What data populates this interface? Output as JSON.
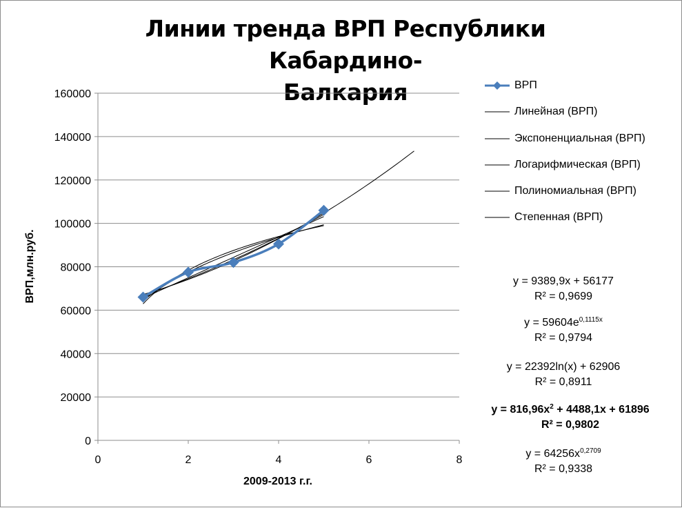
{
  "chart_data": {
    "type": "scatter",
    "title": "Линии тренда ВРП Республики Кабардино-Балкария",
    "title_lines": [
      "Линии тренда ВРП Республики Кабардино-",
      "Балкария"
    ],
    "xlabel": "2009-2013 г.г.",
    "ylabel": "ВРП,млн.руб.",
    "xlim": [
      0,
      8
    ],
    "ylim": [
      0,
      160000
    ],
    "x_ticks": [
      "0",
      "2",
      "4",
      "6",
      "8"
    ],
    "y_ticks": [
      "0",
      "20000",
      "40000",
      "60000",
      "80000",
      "100000",
      "120000",
      "140000",
      "160000"
    ],
    "grid": "horizontal",
    "legend_position": "right",
    "series": [
      {
        "name": "ВРП",
        "x": [
          1,
          2,
          3,
          4,
          5
        ],
        "y": [
          66000,
          77500,
          82000,
          90500,
          106000
        ],
        "color": "#4a7ebb",
        "marker": "diamond"
      }
    ],
    "trendlines": [
      {
        "name": "Линейная (ВРП)",
        "equation": "y = 9389,9x + 56177",
        "r2": "R² = 0,9699",
        "x_range": [
          1,
          5
        ]
      },
      {
        "name": "Экспоненциальная (ВРП)",
        "equation": "y = 59604e",
        "equation_sup": "0,1115x",
        "r2": "R² = 0,9794",
        "x_range": [
          1,
          5
        ]
      },
      {
        "name": "Логарифмическая (ВРП)",
        "equation": "y = 22392ln(x) + 62906",
        "r2": "R² = 0,8911",
        "x_range": [
          1,
          5
        ]
      },
      {
        "name": "Полиномиальная (ВРП)",
        "equation_parts": [
          "y = 816,96x",
          "2",
          " + 4488,1x + 61896"
        ],
        "r2": "R² = 0,9802",
        "x_range": [
          1,
          7
        ],
        "bold": true
      },
      {
        "name": "Степенная (ВРП)",
        "equation": "y = 64256x",
        "equation_sup": "0,2709",
        "r2": "R² = 0,9338",
        "x_range": [
          1,
          5
        ]
      }
    ],
    "line_color": "#000000"
  }
}
